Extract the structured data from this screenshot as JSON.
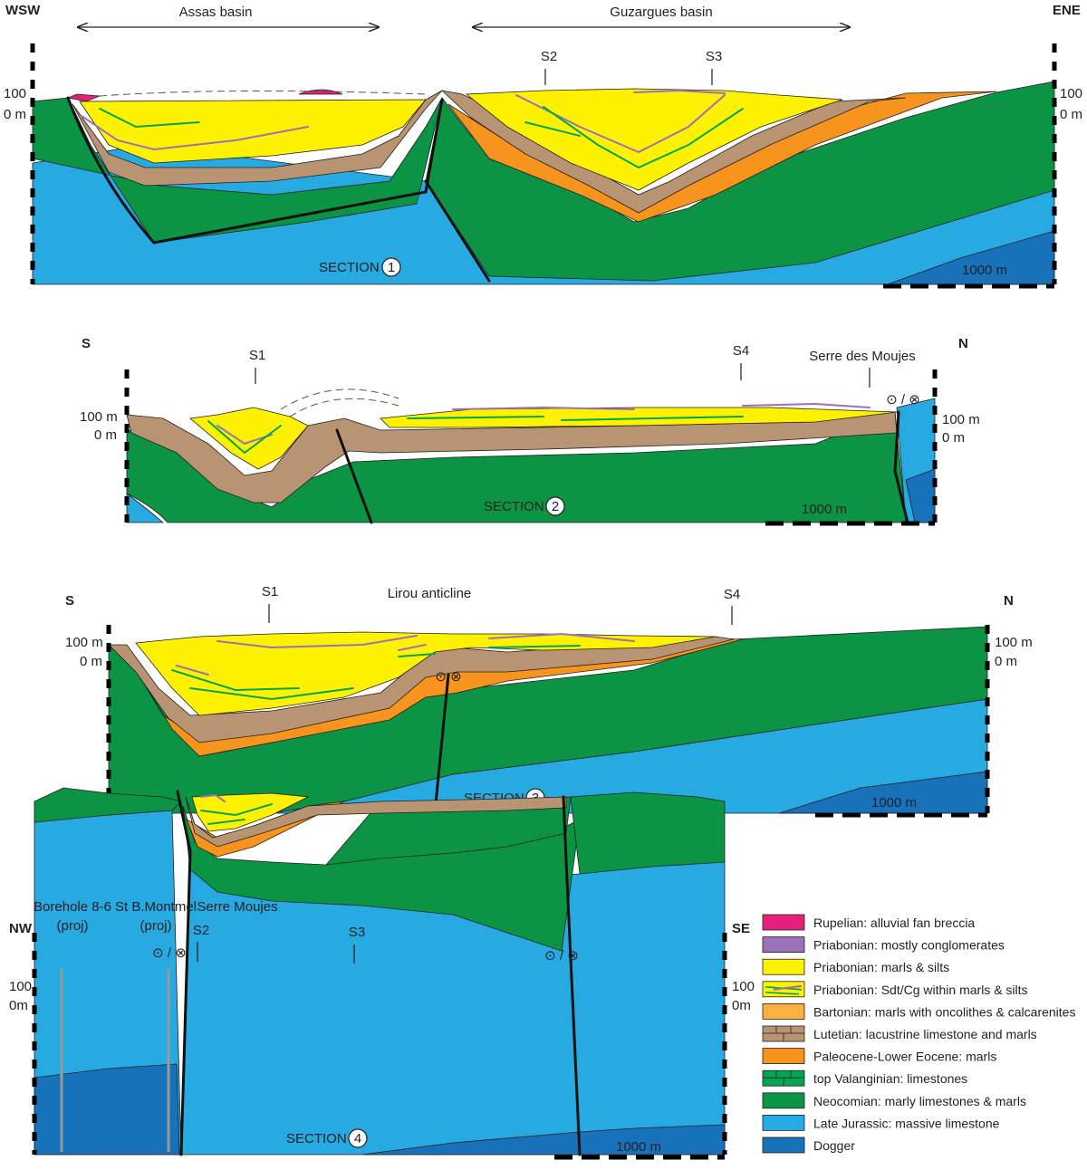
{
  "colors": {
    "rupelian": "#e4207a",
    "priab_cong": "#9b72b5",
    "priab_marl": "#fff200",
    "priab_sdt": "#fff200",
    "bartonian": "#fbb040",
    "lutetian": "#b89472",
    "paleocene": "#f7941d",
    "top_valanginian": "#00a651",
    "neocomian": "#0b9444",
    "late_jurassic": "#27aae1",
    "dogger": "#1772b9",
    "bed_green": "#00a651",
    "bed_purple": "#9b72b5"
  },
  "section1": {
    "dir_left": "WSW",
    "dir_right": "ENE",
    "basin_left": "Assas basin",
    "basin_right": "Guzargues basin",
    "s2": "S2",
    "s3": "S3",
    "elev_left_100": "100",
    "elev_left_0": "0 m",
    "elev_right_100": "100",
    "elev_right_0": "0 m",
    "label": "SECTION",
    "number": "1",
    "scale": "1000 m"
  },
  "section2": {
    "dir_left": "S",
    "dir_right": "N",
    "s1": "S1",
    "s4": "S4",
    "serre": "Serre des Moujes",
    "elev_left_100": "100 m",
    "elev_left_0": "0 m",
    "elev_right_100": "100 m",
    "elev_right_0": "0 m",
    "label": "SECTION",
    "number": "2",
    "scale": "1000 m",
    "fault_symbol": "⊙ / ⊗"
  },
  "section3": {
    "dir_left": "S",
    "dir_right": "N",
    "s1": "S1",
    "s4": "S4",
    "anticline": "Lirou anticline",
    "elev_left_100": "100 m",
    "elev_left_0": "0 m",
    "elev_right_100": "100 m",
    "elev_right_0": "0 m",
    "label": "SECTION",
    "number": "3",
    "scale": "1000 m",
    "fault_symbol": "⊙ ⊗"
  },
  "section4": {
    "dir_left": "NW",
    "dir_right": "SE",
    "borehole": "Borehole 8-6",
    "borehole_proj": "(proj)",
    "stb": "St B.Montmel",
    "stb_proj": "(proj)",
    "serre": "Serre Moujes",
    "s2": "S2",
    "s3": "S3",
    "elev_left_100": "100",
    "elev_left_0": "0m",
    "elev_right_100": "100",
    "elev_right_0": "0m",
    "label": "SECTION",
    "number": "4",
    "scale": "1000 m",
    "fault_symbol": "⊙ / ⊗"
  },
  "legend": [
    {
      "key": "rupelian",
      "label": "Rupelian: alluvial fan breccia"
    },
    {
      "key": "priab_cong",
      "label": "Priabonian: mostly conglomerates"
    },
    {
      "key": "priab_marl",
      "label": "Priabonian: marls & silts"
    },
    {
      "key": "priab_sdt",
      "label": "Priabonian: Sdt/Cg within marls & silts"
    },
    {
      "key": "bartonian",
      "label": "Bartonian: marls with oncolithes & calcarenites"
    },
    {
      "key": "lutetian",
      "label": "Lutetian: lacustrine limestone and marls"
    },
    {
      "key": "paleocene",
      "label": "Paleocene-Lower Eocene: marls"
    },
    {
      "key": "top_valanginian",
      "label": "top Valanginian: limestones"
    },
    {
      "key": "neocomian",
      "label": "Neocomian: marly limestones & marls"
    },
    {
      "key": "late_jurassic",
      "label": "Late Jurassic: massive limestone"
    },
    {
      "key": "dogger",
      "label": "Dogger"
    }
  ]
}
